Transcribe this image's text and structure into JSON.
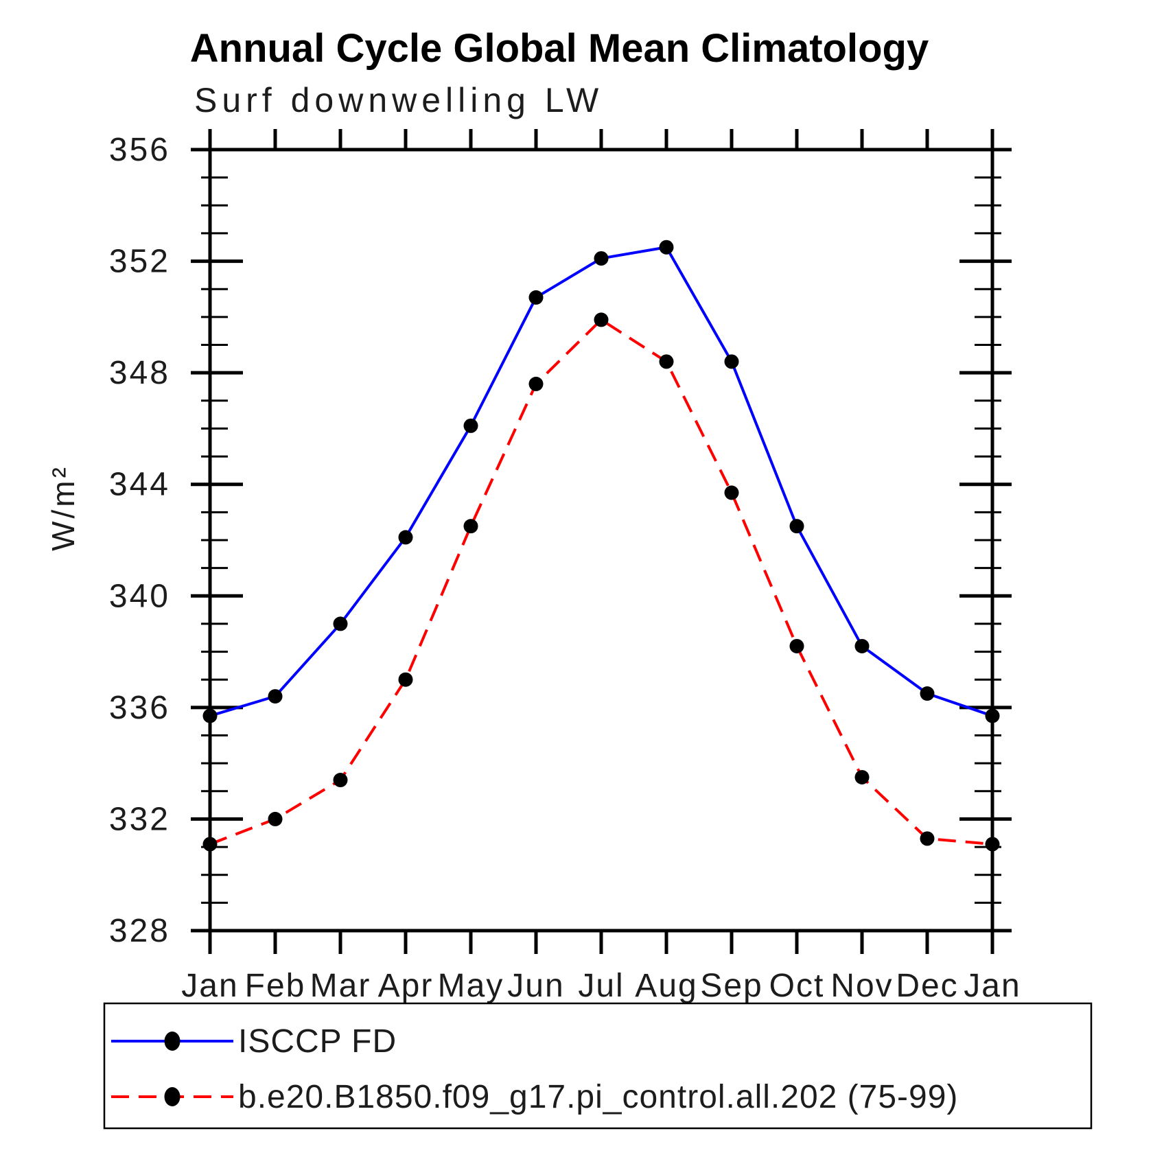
{
  "title": "Annual Cycle Global Mean Climatology",
  "subtitle": "Surf downwelling LW",
  "colors": {
    "background": "#ffffff",
    "axis": "#000000",
    "marker": "#000000",
    "series_obs": "#0000ff",
    "series_model": "#ff0000"
  },
  "chart_data": {
    "type": "line",
    "title": "Annual Cycle Global Mean Climatology",
    "subtitle": "Surf downwelling LW",
    "xlabel": "",
    "ylabel": "W/m²",
    "x_categories": [
      "Jan",
      "Feb",
      "Mar",
      "Apr",
      "May",
      "Jun",
      "Jul",
      "Aug",
      "Sep",
      "Oct",
      "Nov",
      "Dec",
      "Jan"
    ],
    "ylim": [
      328,
      356
    ],
    "y_major_step": 4,
    "y_minor_step": 1,
    "grid": false,
    "legend_position": "bottom-box",
    "series": [
      {
        "name": "ISCCP FD",
        "color": "#0000ff",
        "line_style": "solid",
        "marker": "filled-circle",
        "marker_color": "#000000",
        "values": [
          335.7,
          336.4,
          339.0,
          342.1,
          346.1,
          350.7,
          352.1,
          352.5,
          348.4,
          342.5,
          338.2,
          336.5,
          335.7
        ]
      },
      {
        "name": "b.e20.B1850.f09_g17.pi_control.all.202 (75-99)",
        "color": "#ff0000",
        "line_style": "dashed",
        "marker": "filled-circle",
        "marker_color": "#000000",
        "values": [
          331.1,
          332.0,
          333.4,
          337.0,
          342.5,
          347.6,
          349.9,
          348.4,
          343.7,
          338.2,
          333.5,
          331.3,
          331.1
        ]
      }
    ]
  }
}
